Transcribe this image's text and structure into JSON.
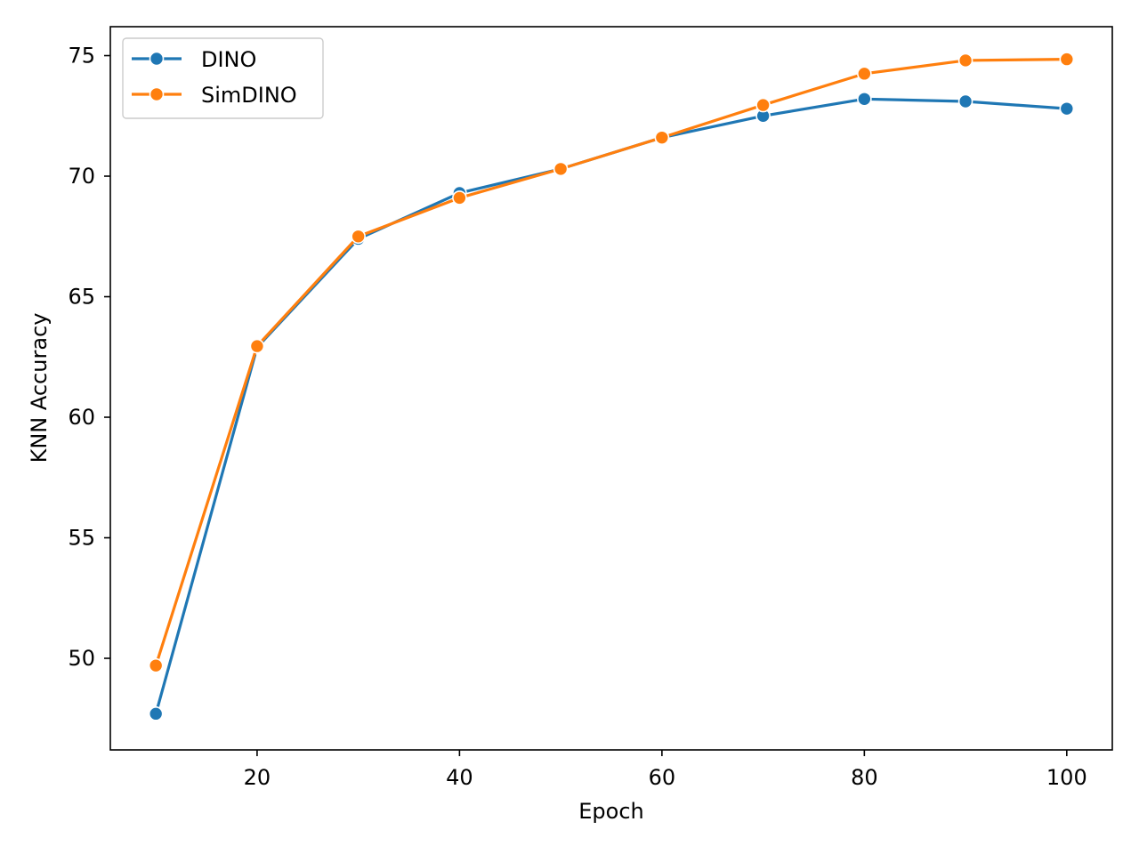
{
  "chart_data": {
    "type": "line",
    "xlabel": "Epoch",
    "ylabel": "KNN Accuracy",
    "x": [
      10,
      20,
      30,
      40,
      50,
      60,
      70,
      80,
      90,
      100
    ],
    "xlim": [
      5.5,
      104.5
    ],
    "ylim": [
      46.2,
      76.2
    ],
    "xticks": [
      20,
      40,
      60,
      80,
      100
    ],
    "yticks": [
      50,
      55,
      60,
      65,
      70,
      75
    ],
    "grid": false,
    "legend_position": "top-left",
    "series": [
      {
        "name": "DINO",
        "color": "#1f77b4",
        "marker": "circle",
        "values": [
          47.7,
          62.9,
          67.4,
          69.3,
          70.3,
          71.6,
          72.5,
          73.2,
          73.1,
          72.8
        ]
      },
      {
        "name": "SimDINO",
        "color": "#ff7f0e",
        "marker": "circle",
        "values": [
          49.7,
          62.95,
          67.5,
          69.1,
          70.3,
          71.6,
          72.95,
          74.25,
          74.8,
          74.85
        ]
      }
    ]
  }
}
